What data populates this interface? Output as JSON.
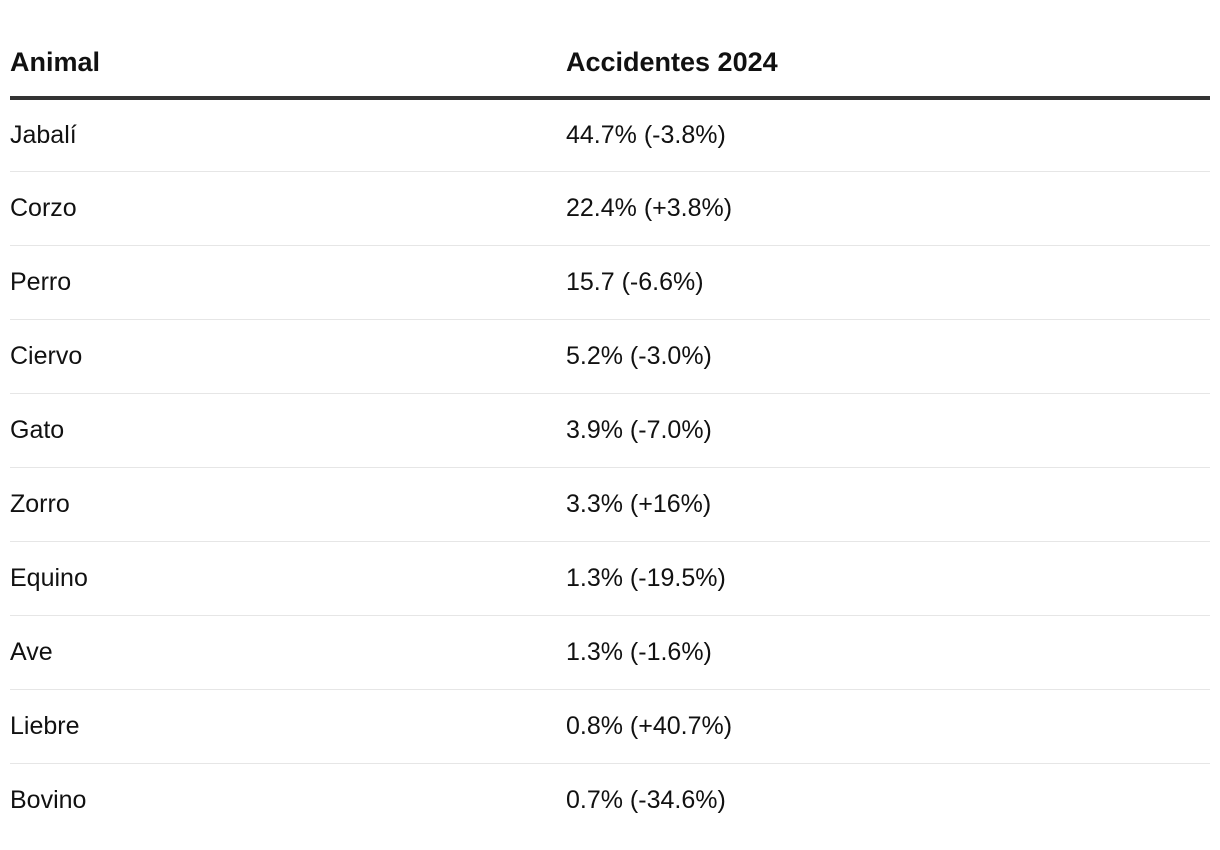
{
  "chart_data": {
    "type": "table",
    "columns": [
      "Animal",
      "Accidentes 2024"
    ],
    "rows": [
      [
        "Jabalí",
        "44.7% (-3.8%)"
      ],
      [
        "Corzo",
        "22.4% (+3.8%)"
      ],
      [
        "Perro",
        "15.7 (-6.6%)"
      ],
      [
        "Ciervo",
        "5.2% (-3.0%)"
      ],
      [
        "Gato",
        "3.9% (-7.0%)"
      ],
      [
        "Zorro",
        "3.3% (+16%)"
      ],
      [
        "Equino",
        "1.3% (-19.5%)"
      ],
      [
        "Ave",
        "1.3% (-1.6%)"
      ],
      [
        "Liebre",
        "0.8% (+40.7%)"
      ],
      [
        "Bovino",
        "0.7% (-34.6%)"
      ]
    ]
  }
}
